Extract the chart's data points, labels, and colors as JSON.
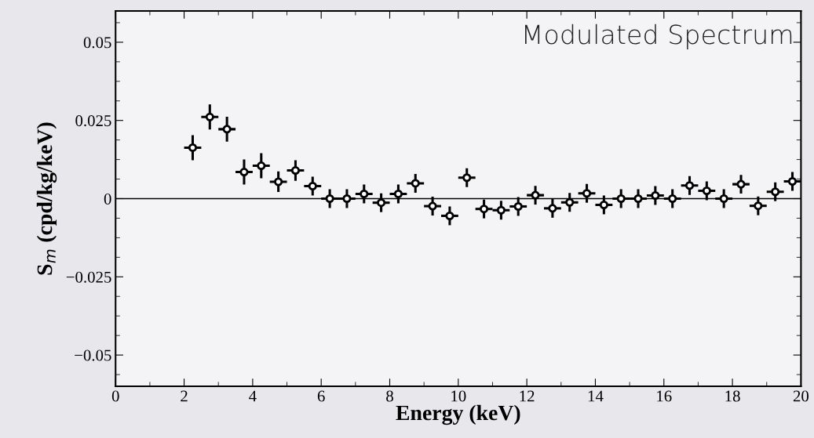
{
  "chart_data": {
    "type": "scatter",
    "title": "Modulated Spectrum",
    "xlabel": "Energy (keV)",
    "ylabel": "S$_{m}$ (cpd/kg/keV)",
    "x": [
      2.25,
      2.75,
      3.25,
      3.75,
      4.25,
      4.75,
      5.25,
      5.75,
      6.25,
      6.75,
      7.25,
      7.75,
      8.25,
      8.75,
      9.25,
      9.75,
      10.25,
      10.75,
      11.25,
      11.75,
      12.25,
      12.75,
      13.25,
      13.75,
      14.25,
      14.75,
      15.25,
      15.75,
      16.25,
      16.75,
      17.25,
      17.75,
      18.25,
      18.75,
      19.25,
      19.75
    ],
    "values": [
      0.0163,
      0.0261,
      0.0222,
      0.0085,
      0.0105,
      0.0054,
      0.009,
      0.004,
      0.0,
      0.0,
      0.0015,
      -0.0013,
      0.0015,
      0.0049,
      -0.0024,
      -0.0055,
      0.0067,
      -0.0033,
      -0.0037,
      -0.0025,
      0.0011,
      -0.0031,
      -0.0012,
      0.0017,
      -0.002,
      0.0,
      0.0,
      0.001,
      0.0,
      0.0042,
      0.0025,
      0.0,
      0.0046,
      -0.0023,
      0.0022,
      0.0055
    ],
    "errors": [
      0.004,
      0.004,
      0.004,
      0.004,
      0.004,
      0.0033,
      0.0033,
      0.003,
      0.003,
      0.003,
      0.003,
      0.003,
      0.003,
      0.003,
      0.003,
      0.003,
      0.003,
      0.003,
      0.003,
      0.003,
      0.003,
      0.003,
      0.003,
      0.003,
      0.003,
      0.003,
      0.003,
      0.003,
      0.003,
      0.003,
      0.003,
      0.003,
      0.003,
      0.003,
      0.003,
      0.003
    ],
    "xerrors": [
      0.25,
      0.25,
      0.25,
      0.25,
      0.25,
      0.25,
      0.25,
      0.25,
      0.25,
      0.25,
      0.25,
      0.25,
      0.25,
      0.25,
      0.25,
      0.25,
      0.25,
      0.25,
      0.25,
      0.25,
      0.25,
      0.25,
      0.25,
      0.25,
      0.25,
      0.25,
      0.25,
      0.25,
      0.25,
      0.25,
      0.25,
      0.25,
      0.25,
      0.25,
      0.25,
      0.25
    ],
    "color": "#000000",
    "marker": "circle",
    "xlim": [
      0,
      20
    ],
    "xticks": [
      0,
      2,
      4,
      6,
      8,
      10,
      12,
      14,
      16,
      18,
      20
    ],
    "ylim": [
      -0.06,
      0.06
    ],
    "yticks": [
      {
        "value": -0.05,
        "label": "−0.05"
      },
      {
        "value": -0.025,
        "label": "−0.025"
      },
      0,
      0.025,
      0.05
    ],
    "ref_lines": [
      {
        "axis": "y",
        "value": 0,
        "color": "#000000",
        "line_style": "solid"
      }
    ],
    "grid": false,
    "legend": false
  }
}
